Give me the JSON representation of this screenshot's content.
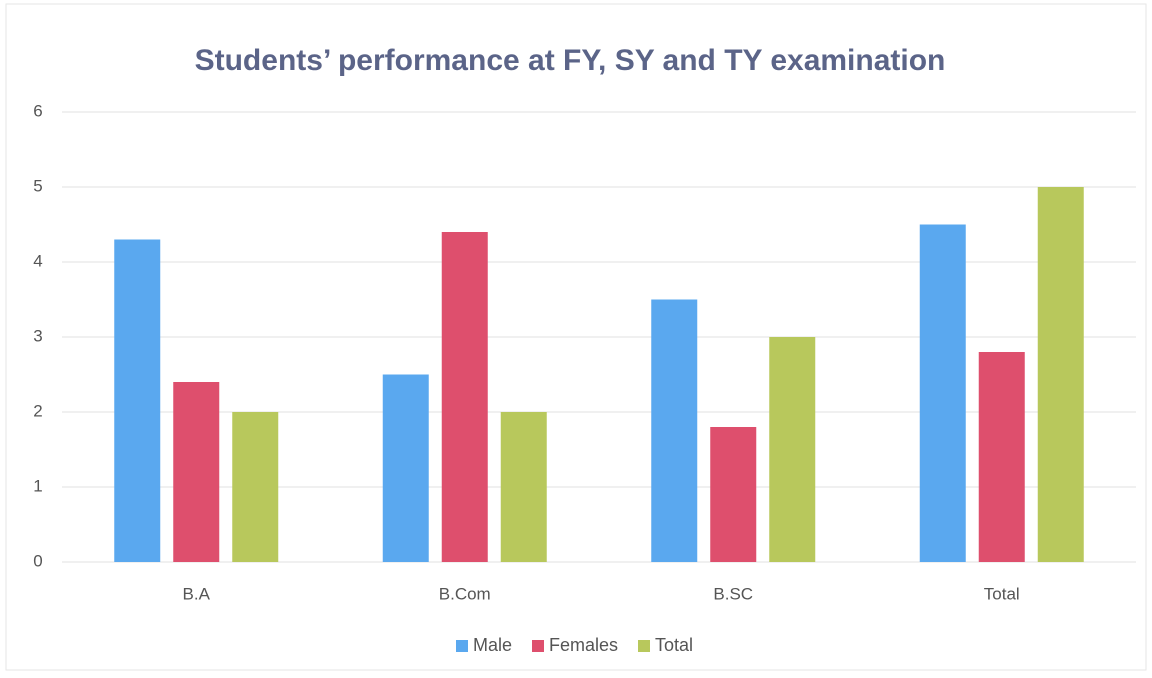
{
  "chart_data": {
    "type": "bar",
    "title": "Students’ performance at FY, SY and TY examination",
    "categories": [
      "B.A",
      "B.Com",
      "B.SC",
      "Total"
    ],
    "series": [
      {
        "name": "Male",
        "color": "#5aa8ef",
        "values": [
          4.3,
          2.5,
          3.5,
          4.5
        ]
      },
      {
        "name": "Females",
        "color": "#de4f6d",
        "values": [
          2.4,
          4.4,
          1.8,
          2.8
        ]
      },
      {
        "name": "Total",
        "color": "#b8c85c",
        "values": [
          2.0,
          2.0,
          3.0,
          5.0
        ]
      }
    ],
    "ylim": [
      0,
      6
    ],
    "yticks": [
      0,
      1,
      2,
      3,
      4,
      5,
      6
    ],
    "grid": true,
    "legend": "bottom"
  }
}
